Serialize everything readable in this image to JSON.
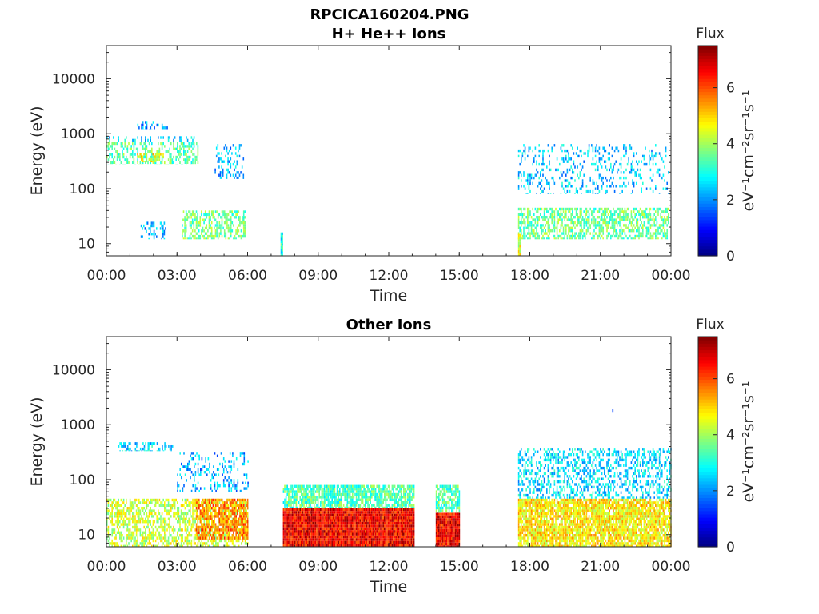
{
  "figure_title": "RPCICA160204.PNG",
  "colors": {
    "colormap": "jet",
    "axis": "#262626",
    "background": "#ffffff"
  },
  "chart_data": [
    {
      "type": "heatmap",
      "title": "H+ He++ Ions",
      "xlabel": "Time",
      "ylabel": "Energy (eV)",
      "x_ticks": [
        "00:00",
        "03:00",
        "06:00",
        "09:00",
        "12:00",
        "15:00",
        "18:00",
        "21:00",
        "00:00"
      ],
      "x_range_hours": [
        0,
        24
      ],
      "y_scale": "log",
      "y_ticks": [
        "10",
        "100",
        "1000",
        "10000"
      ],
      "y_range": [
        6,
        40000
      ],
      "colorbar": {
        "title": "Flux",
        "label": "eV⁻¹cm⁻²sr⁻¹s⁻¹",
        "ticks": [
          "0",
          "2",
          "4",
          "6"
        ],
        "range": [
          0,
          7.5
        ]
      },
      "regions": [
        {
          "t": [
            0.0,
            3.9
          ],
          "e": [
            280,
            700
          ],
          "flux": 3.5,
          "density": 0.45
        },
        {
          "t": [
            0.0,
            3.9
          ],
          "e": [
            700,
            900
          ],
          "flux": 2.5,
          "density": 0.25
        },
        {
          "t": [
            1.2,
            2.6
          ],
          "e": [
            1200,
            1700
          ],
          "flux": 2.2,
          "density": 0.2
        },
        {
          "t": [
            1.3,
            2.4
          ],
          "e": [
            300,
            450
          ],
          "flux": 4.6,
          "density": 0.5
        },
        {
          "t": [
            4.6,
            5.8
          ],
          "e": [
            150,
            650
          ],
          "flux": 2.3,
          "density": 0.25
        },
        {
          "t": [
            1.4,
            2.5
          ],
          "e": [
            12,
            25
          ],
          "flux": 2.3,
          "density": 0.3
        },
        {
          "t": [
            3.2,
            5.9
          ],
          "e": [
            12,
            40
          ],
          "flux": 3.6,
          "density": 0.55
        },
        {
          "t": [
            7.4,
            7.5
          ],
          "e": [
            6,
            16
          ],
          "flux": 3.0,
          "density": 1.0
        },
        {
          "t": [
            17.5,
            23.9
          ],
          "e": [
            12,
            45
          ],
          "flux": 3.6,
          "density": 0.55
        },
        {
          "t": [
            17.5,
            23.9
          ],
          "e": [
            80,
            650
          ],
          "flux": 2.4,
          "density": 0.2
        },
        {
          "t": [
            17.5,
            17.6
          ],
          "e": [
            6,
            15
          ],
          "flux": 4.4,
          "density": 1.0
        }
      ]
    },
    {
      "type": "heatmap",
      "title": "Other Ions",
      "xlabel": "Time",
      "ylabel": "Energy (eV)",
      "x_ticks": [
        "00:00",
        "03:00",
        "06:00",
        "09:00",
        "12:00",
        "15:00",
        "18:00",
        "21:00",
        "00:00"
      ],
      "x_range_hours": [
        0,
        24
      ],
      "y_scale": "log",
      "y_ticks": [
        "10",
        "100",
        "1000",
        "10000"
      ],
      "y_range": [
        6,
        40000
      ],
      "colorbar": {
        "title": "Flux",
        "label": "eV⁻¹cm⁻²sr⁻¹s⁻¹",
        "ticks": [
          "0",
          "2",
          "4",
          "6"
        ],
        "range": [
          0,
          7.5
        ]
      },
      "regions": [
        {
          "t": [
            0.0,
            6.0
          ],
          "e": [
            6,
            45
          ],
          "flux": 4.3,
          "density": 0.55
        },
        {
          "t": [
            3.8,
            6.0
          ],
          "e": [
            8,
            45
          ],
          "flux": 5.6,
          "density": 0.7
        },
        {
          "t": [
            0.5,
            2.8
          ],
          "e": [
            330,
            480
          ],
          "flux": 2.6,
          "density": 0.4
        },
        {
          "t": [
            3.0,
            6.0
          ],
          "e": [
            60,
            320
          ],
          "flux": 2.2,
          "density": 0.22
        },
        {
          "t": [
            7.5,
            13.1
          ],
          "e": [
            6,
            30
          ],
          "flux": 6.6,
          "density": 1.0
        },
        {
          "t": [
            7.5,
            13.1
          ],
          "e": [
            30,
            80
          ],
          "flux": 3.4,
          "density": 0.75
        },
        {
          "t": [
            14.0,
            15.0
          ],
          "e": [
            6,
            25
          ],
          "flux": 6.6,
          "density": 1.0
        },
        {
          "t": [
            14.0,
            15.0
          ],
          "e": [
            25,
            80
          ],
          "flux": 3.4,
          "density": 0.7
        },
        {
          "t": [
            17.5,
            24.0
          ],
          "e": [
            6,
            45
          ],
          "flux": 4.8,
          "density": 0.85
        },
        {
          "t": [
            17.5,
            24.0
          ],
          "e": [
            45,
            380
          ],
          "flux": 2.6,
          "density": 0.4
        },
        {
          "t": [
            21.5,
            21.55
          ],
          "e": [
            1700,
            1900
          ],
          "flux": 2.0,
          "density": 1.0
        }
      ]
    }
  ]
}
